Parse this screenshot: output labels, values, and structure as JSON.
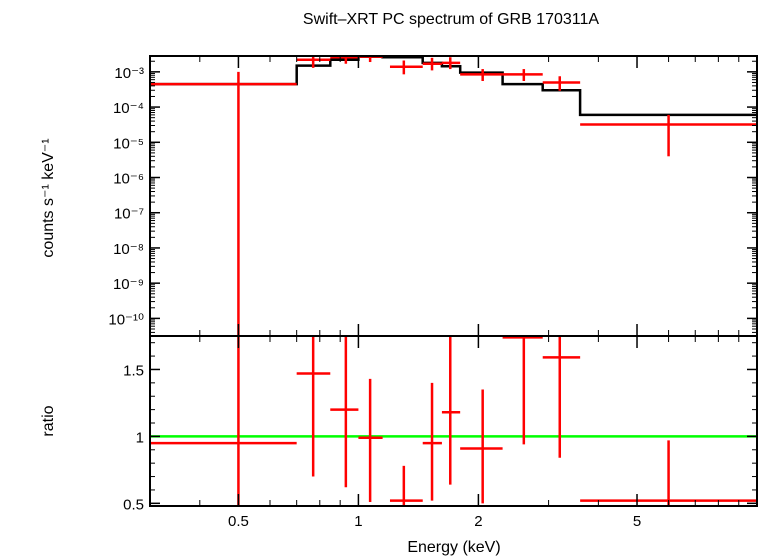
{
  "chart_data": {
    "type": "line",
    "title": "Swift–XRT PC spectrum of GRB 170311A",
    "xlabel": "Energy (keV)",
    "xscale": "log",
    "xlim": [
      0.3,
      10
    ],
    "x_ticks": [
      {
        "value": 0.5,
        "label": "0.5"
      },
      {
        "value": 1,
        "label": "1"
      },
      {
        "value": 2,
        "label": "2"
      },
      {
        "value": 5,
        "label": "5"
      }
    ],
    "colors": {
      "data": "#ff0000",
      "model": "#000000",
      "unity": "#00ff00",
      "axes": "#000000"
    },
    "top_panel": {
      "ylabel": "counts s⁻¹ keV⁻¹",
      "yscale": "log",
      "ylim_log10": [
        -10.5,
        -2.55
      ],
      "y_ticks": [
        {
          "exp": -3,
          "label": "10⁻³"
        },
        {
          "exp": -4,
          "label": "10⁻⁴"
        },
        {
          "exp": -5,
          "label": "10⁻⁵"
        },
        {
          "exp": -6,
          "label": "10⁻⁶"
        },
        {
          "exp": -7,
          "label": "10⁻⁷"
        },
        {
          "exp": -8,
          "label": "10⁻⁸"
        },
        {
          "exp": -9,
          "label": "10⁻⁹"
        },
        {
          "exp": -10,
          "label": "10⁻¹⁰"
        }
      ],
      "data": [
        {
          "x": 0.5,
          "xlo": 0.3,
          "xhi": 0.7,
          "y": 0.00045,
          "ylo": 1e-11,
          "yhi": 0.001
        },
        {
          "x": 0.77,
          "xlo": 0.7,
          "xhi": 0.85,
          "y": 0.0022,
          "ylo": 0.0013,
          "yhi": 0.0032
        },
        {
          "x": 0.93,
          "xlo": 0.85,
          "xhi": 1.0,
          "y": 0.0026,
          "ylo": 0.0017,
          "yhi": 0.0036
        },
        {
          "x": 1.07,
          "xlo": 1.0,
          "xhi": 1.15,
          "y": 0.0027,
          "ylo": 0.0019,
          "yhi": 0.0037
        },
        {
          "x": 1.3,
          "xlo": 1.2,
          "xhi": 1.45,
          "y": 0.0014,
          "ylo": 0.00085,
          "yhi": 0.0021
        },
        {
          "x": 1.53,
          "xlo": 1.45,
          "xhi": 1.62,
          "y": 0.0017,
          "ylo": 0.0011,
          "yhi": 0.0025
        },
        {
          "x": 1.7,
          "xlo": 1.62,
          "xhi": 1.8,
          "y": 0.0018,
          "ylo": 0.0012,
          "yhi": 0.0026
        },
        {
          "x": 2.05,
          "xlo": 1.8,
          "xhi": 2.3,
          "y": 0.00085,
          "ylo": 0.00055,
          "yhi": 0.0012
        },
        {
          "x": 2.6,
          "xlo": 2.3,
          "xhi": 2.9,
          "y": 0.00085,
          "ylo": 0.00055,
          "yhi": 0.0012
        },
        {
          "x": 3.2,
          "xlo": 2.9,
          "xhi": 3.6,
          "y": 0.0005,
          "ylo": 0.00029,
          "yhi": 0.00075
        },
        {
          "x": 6.0,
          "xlo": 3.6,
          "xhi": 10.0,
          "y": 3.2e-05,
          "ylo": 4e-06,
          "yhi": 6e-05
        }
      ],
      "model": {
        "edges": [
          0.3,
          0.7,
          0.85,
          1.0,
          1.15,
          1.45,
          1.62,
          1.8,
          2.3,
          2.9,
          3.6,
          10.0
        ],
        "values": [
          0.00045,
          0.0015,
          0.0022,
          0.0027,
          0.0026,
          0.0018,
          0.00145,
          0.00095,
          0.00045,
          0.0003,
          6e-05
        ]
      }
    },
    "bottom_panel": {
      "ylabel": "ratio",
      "yscale": "linear",
      "ylim": [
        0.48,
        1.75
      ],
      "y_ticks": [
        {
          "value": 0.5,
          "label": "0.5"
        },
        {
          "value": 1,
          "label": "1"
        },
        {
          "value": 1.5,
          "label": "1.5"
        }
      ],
      "unity": 1,
      "data": [
        {
          "x": 0.5,
          "xlo": 0.3,
          "xhi": 0.7,
          "y": 0.95,
          "ylo": 0.0,
          "yhi": 2.3
        },
        {
          "x": 0.77,
          "xlo": 0.7,
          "xhi": 0.85,
          "y": 1.47,
          "ylo": 0.7,
          "yhi": 2.3
        },
        {
          "x": 0.93,
          "xlo": 0.85,
          "xhi": 1.0,
          "y": 1.2,
          "ylo": 0.62,
          "yhi": 1.75
        },
        {
          "x": 1.07,
          "xlo": 1.0,
          "xhi": 1.15,
          "y": 0.99,
          "ylo": 0.51,
          "yhi": 1.43
        },
        {
          "x": 1.3,
          "xlo": 1.2,
          "xhi": 1.45,
          "y": 0.52,
          "ylo": 0.28,
          "yhi": 0.78
        },
        {
          "x": 1.53,
          "xlo": 1.45,
          "xhi": 1.62,
          "y": 0.95,
          "ylo": 0.52,
          "yhi": 1.4
        },
        {
          "x": 1.7,
          "xlo": 1.62,
          "xhi": 1.8,
          "y": 1.18,
          "ylo": 0.64,
          "yhi": 1.75
        },
        {
          "x": 2.05,
          "xlo": 1.8,
          "xhi": 2.3,
          "y": 0.91,
          "ylo": 0.5,
          "yhi": 1.35
        },
        {
          "x": 2.6,
          "xlo": 2.3,
          "xhi": 2.9,
          "y": 1.74,
          "ylo": 0.94,
          "yhi": 2.5
        },
        {
          "x": 3.2,
          "xlo": 2.9,
          "xhi": 3.6,
          "y": 1.59,
          "ylo": 0.84,
          "yhi": 2.3
        },
        {
          "x": 6.0,
          "xlo": 3.6,
          "xhi": 10.0,
          "y": 0.52,
          "ylo": 0.07,
          "yhi": 0.97
        }
      ]
    }
  }
}
